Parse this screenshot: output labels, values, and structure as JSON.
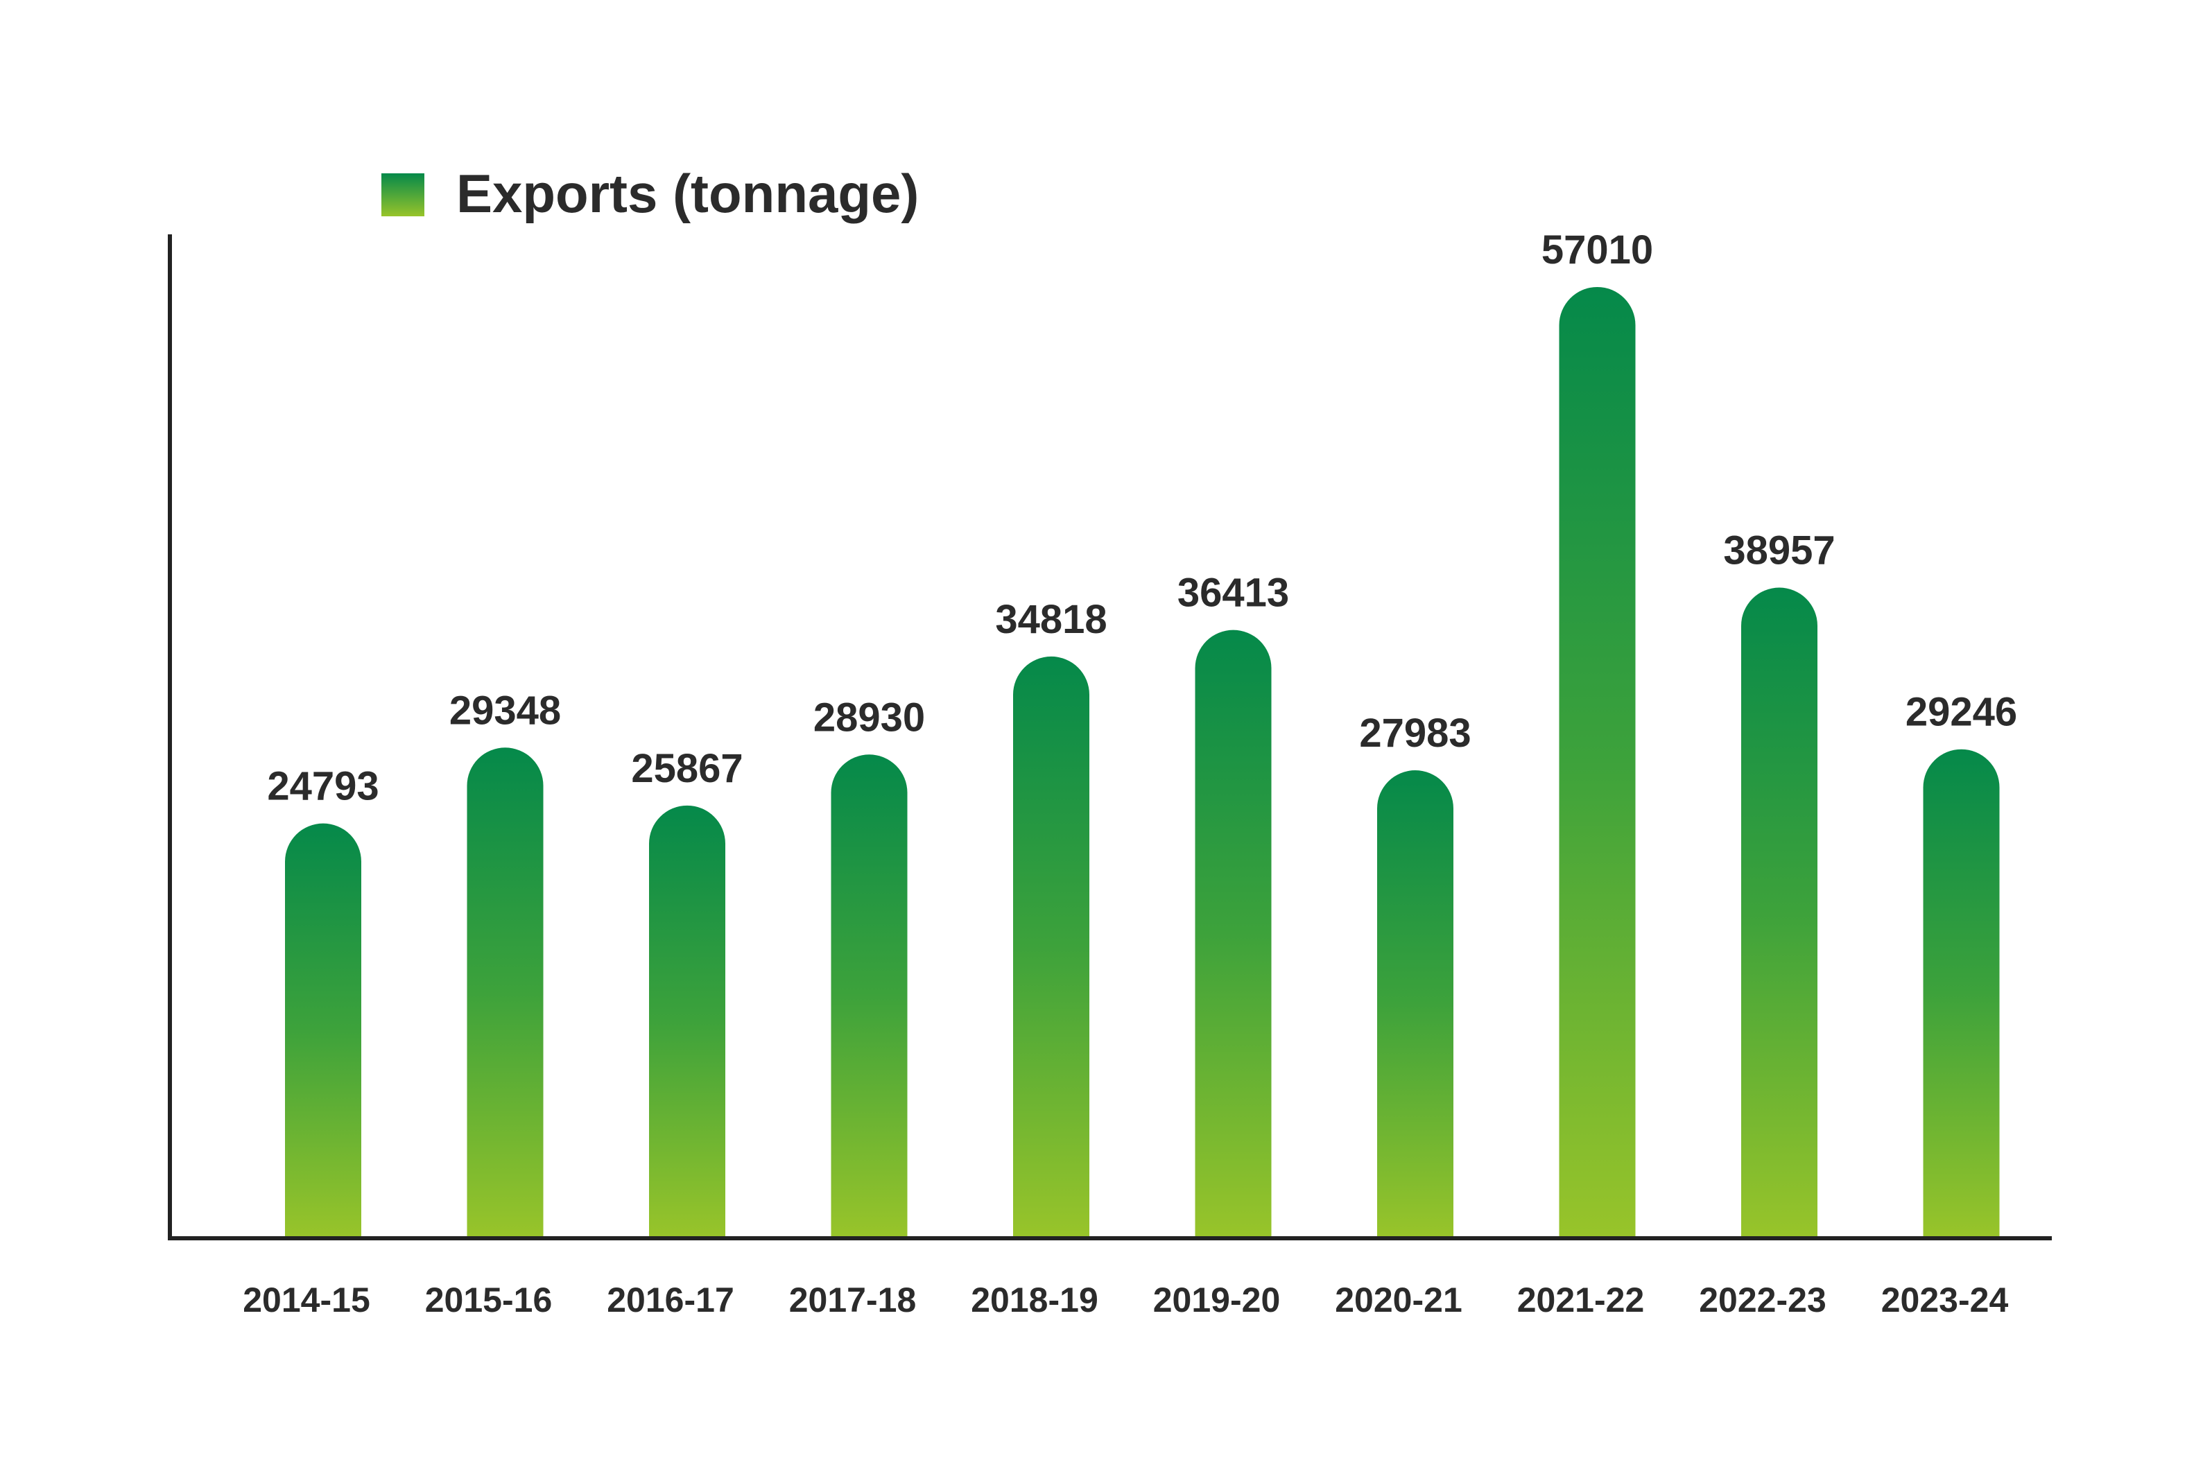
{
  "chart_data": {
    "type": "bar",
    "categories": [
      "2014-15",
      "2015-16",
      "2016-17",
      "2017-18",
      "2018-19",
      "2019-20",
      "2020-21",
      "2021-22",
      "2022-23",
      "2023-24"
    ],
    "series": [
      {
        "name": "Exports (tonnage)",
        "values": [
          24793,
          29348,
          25867,
          28930,
          34818,
          36413,
          27983,
          57010,
          38957,
          29246
        ]
      }
    ],
    "data_labels": [
      "24793",
      "29348",
      "25867",
      "28930",
      "34818",
      "36413",
      "27983",
      "57010",
      "38957",
      "29246"
    ],
    "title": "",
    "xlabel": "",
    "ylabel": "",
    "ylim": [
      0,
      64000
    ],
    "grid": false,
    "legend_position": "top-left",
    "colors": {
      "bar_top": "#05894A",
      "bar_mid": "#3DA23B",
      "bar_bottom": "#98C42A",
      "axis": "#222222",
      "text": "#2b2b2b"
    }
  }
}
